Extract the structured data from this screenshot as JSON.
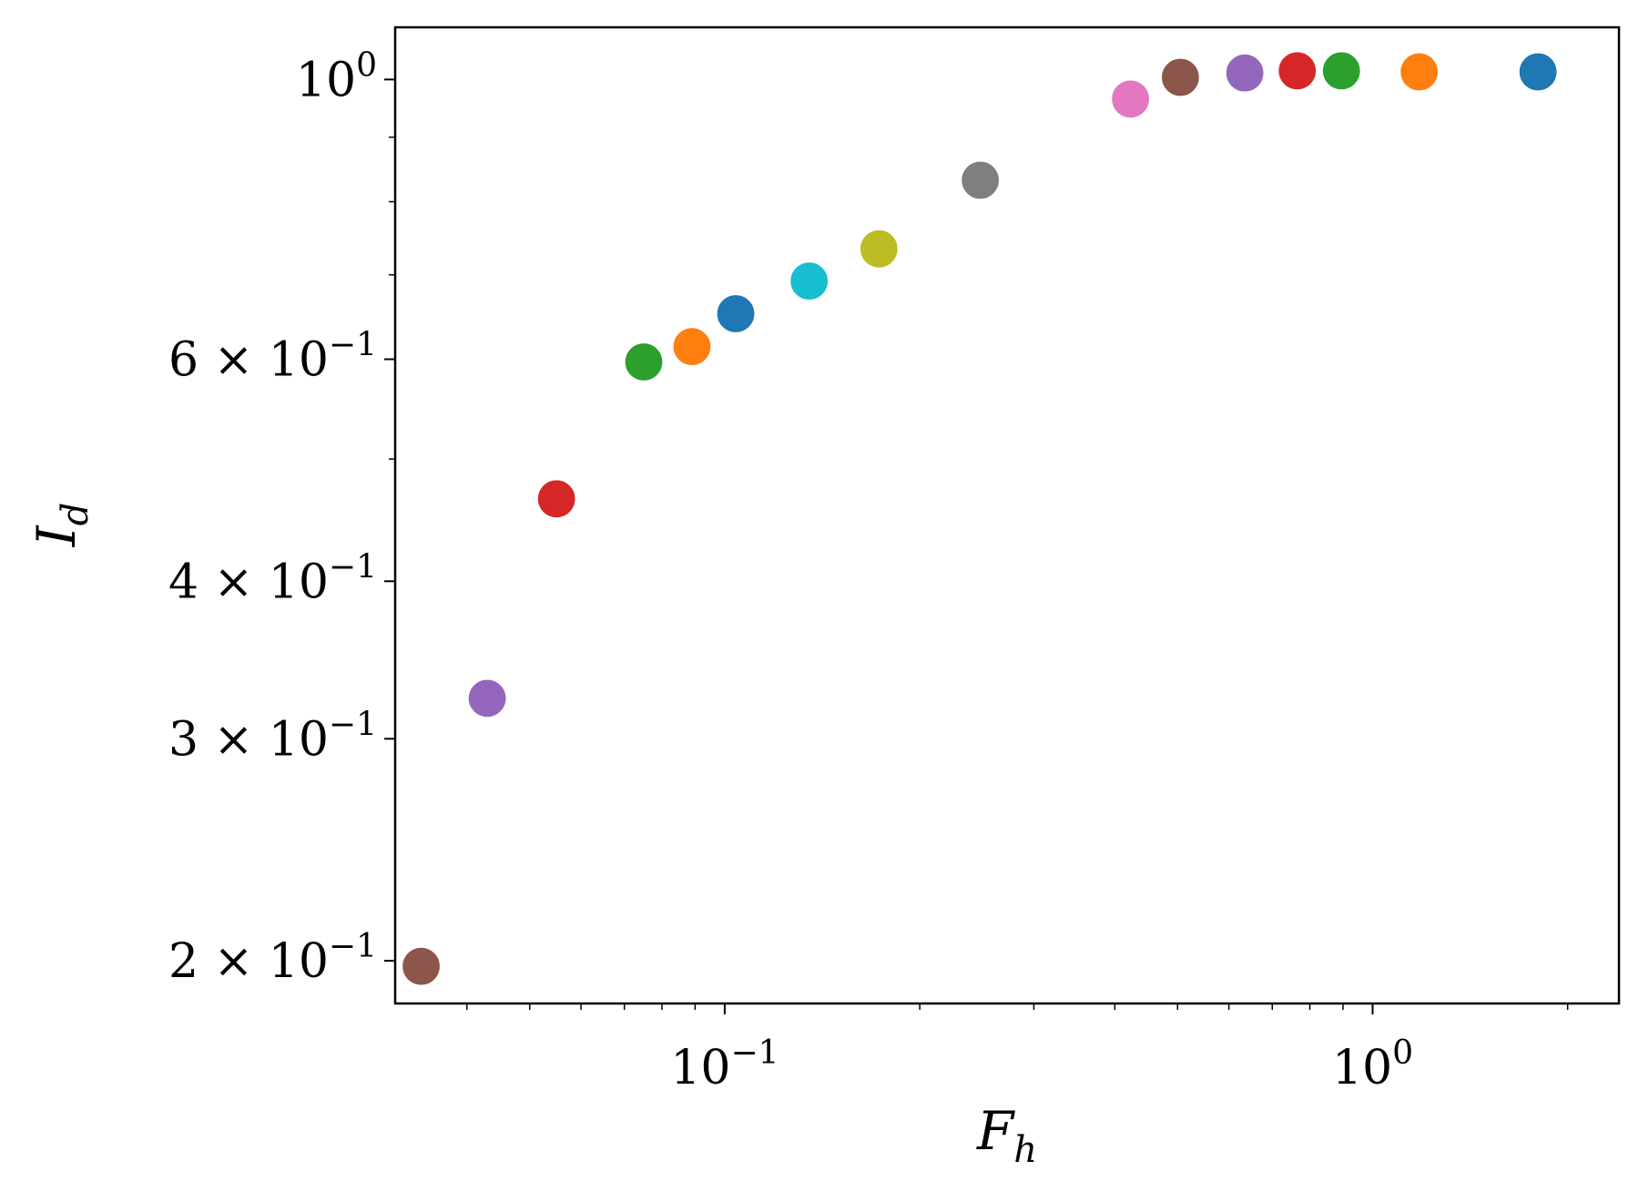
{
  "chart_data": {
    "type": "scatter",
    "x_scale": "log",
    "y_scale": "log",
    "xlabel": "F",
    "xlabel_sub": "h",
    "ylabel": "I",
    "ylabel_sub": "d",
    "xlim": [
      0.031,
      2.4
    ],
    "ylim": [
      0.185,
      1.1
    ],
    "grid": false,
    "x_ticks": [
      {
        "value": 0.1,
        "base": "10",
        "exp": "−1"
      },
      {
        "value": 1.0,
        "base": "10",
        "exp": "0"
      }
    ],
    "y_ticks": [
      {
        "value": 0.2,
        "mant": "2 × 10",
        "exp": "−1"
      },
      {
        "value": 0.3,
        "mant": "3 × 10",
        "exp": "−1"
      },
      {
        "value": 0.4,
        "mant": "4 × 10",
        "exp": "−1"
      },
      {
        "value": 0.6,
        "mant": "6 × 10",
        "exp": "−1"
      },
      {
        "value": 1.0,
        "mant": "10",
        "exp": "0"
      }
    ],
    "points": [
      {
        "x": 0.034,
        "y": 0.198,
        "color": "#8c564b"
      },
      {
        "x": 0.043,
        "y": 0.323,
        "color": "#9467bd"
      },
      {
        "x": 0.055,
        "y": 0.465,
        "color": "#d62728"
      },
      {
        "x": 0.075,
        "y": 0.597,
        "color": "#2ca02c"
      },
      {
        "x": 0.089,
        "y": 0.614,
        "color": "#ff7f0e"
      },
      {
        "x": 0.104,
        "y": 0.652,
        "color": "#1f77b4"
      },
      {
        "x": 0.135,
        "y": 0.692,
        "color": "#17becf"
      },
      {
        "x": 0.173,
        "y": 0.734,
        "color": "#bcbd22"
      },
      {
        "x": 0.248,
        "y": 0.832,
        "color": "#7f7f7f"
      },
      {
        "x": 0.423,
        "y": 0.965,
        "color": "#e377c2"
      },
      {
        "x": 0.505,
        "y": 1.004,
        "color": "#8c564b"
      },
      {
        "x": 0.635,
        "y": 1.012,
        "color": "#9467bd"
      },
      {
        "x": 0.765,
        "y": 1.016,
        "color": "#d62728"
      },
      {
        "x": 0.895,
        "y": 1.016,
        "color": "#2ca02c"
      },
      {
        "x": 1.18,
        "y": 1.014,
        "color": "#ff7f0e"
      },
      {
        "x": 1.8,
        "y": 1.014,
        "color": "#1f77b4"
      }
    ]
  }
}
